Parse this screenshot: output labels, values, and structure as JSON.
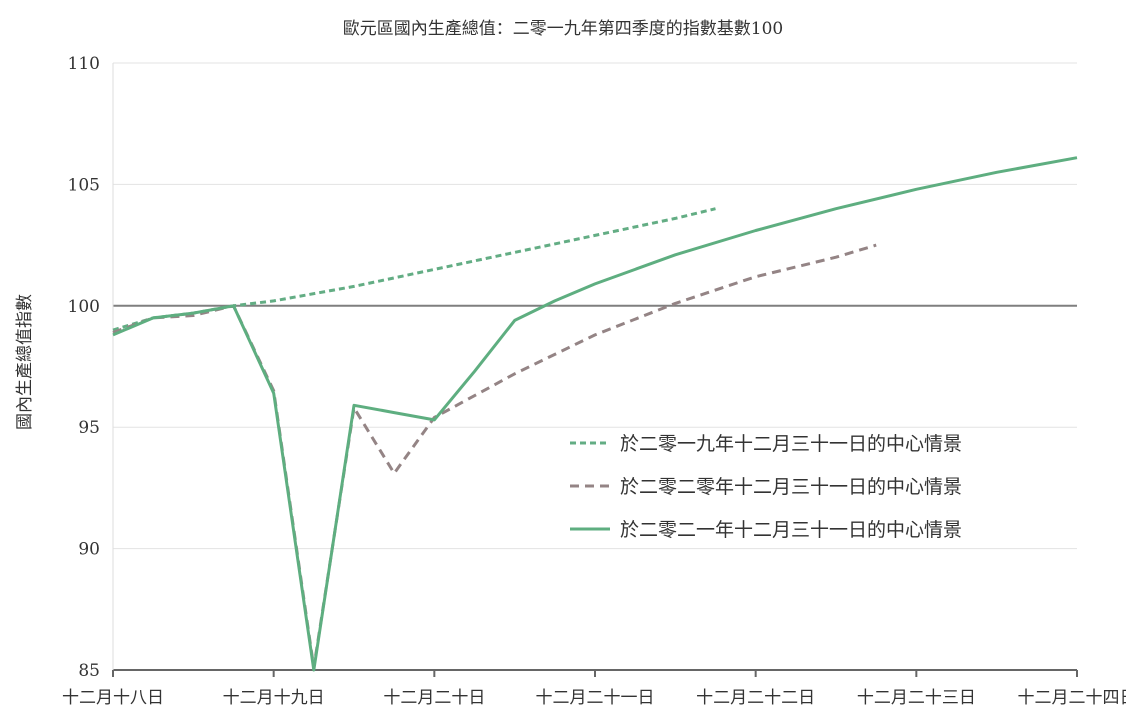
{
  "chart_data": {
    "type": "line",
    "title": "歐元區國內生產總值：二零一九年第四季度的指數基數100",
    "xlabel": "",
    "ylabel": "國內生產總值指數",
    "x_tick_labels": [
      "十二月十八日",
      "十二月十九日",
      "十二月二十日",
      "十二月二十一日",
      "十二月二十二日",
      "十二月二十三日",
      "十二月二十四日"
    ],
    "xlim": [
      2018.0,
      2024.0
    ],
    "ylim": [
      85,
      110
    ],
    "y_ticks": [
      85,
      90,
      95,
      100,
      105,
      110
    ],
    "reference_line": 100,
    "grid": "horizontal",
    "legend_position": "center-right",
    "series": [
      {
        "name": "於二零一九年十二月三十一日的中心情景",
        "style": "dotted",
        "color": "#63ad84",
        "x": [
          2018.0,
          2018.25,
          2018.5,
          2018.75,
          2019.0,
          2019.5,
          2020.0,
          2020.5,
          2021.0,
          2021.5,
          2021.75
        ],
        "y": [
          99.0,
          99.5,
          99.7,
          100.0,
          100.2,
          100.8,
          101.5,
          102.2,
          102.9,
          103.6,
          104.0
        ]
      },
      {
        "name": "於二零二零年十二月三十一日的中心情景",
        "style": "dashed",
        "color": "#948485",
        "x": [
          2018.0,
          2018.25,
          2018.5,
          2018.75,
          2019.0,
          2019.25,
          2019.5,
          2019.75,
          2020.0,
          2020.5,
          2021.0,
          2021.5,
          2022.0,
          2022.5,
          2022.75
        ],
        "y": [
          98.9,
          99.5,
          99.6,
          100.0,
          96.5,
          85.1,
          95.8,
          93.1,
          95.4,
          97.2,
          98.8,
          100.1,
          101.2,
          102.0,
          102.5
        ]
      },
      {
        "name": "於二零二一年十二月三十一日的中心情景",
        "style": "solid",
        "color": "#5eae80",
        "x": [
          2018.0,
          2018.25,
          2018.5,
          2018.75,
          2019.0,
          2019.25,
          2019.5,
          2019.75,
          2020.0,
          2020.25,
          2020.5,
          2020.75,
          2021.0,
          2021.5,
          2022.0,
          2022.5,
          2023.0,
          2023.5,
          2024.0
        ],
        "y": [
          98.8,
          99.5,
          99.7,
          100.0,
          96.4,
          85.0,
          95.9,
          95.6,
          95.3,
          97.3,
          99.4,
          100.2,
          100.9,
          102.1,
          103.1,
          104.0,
          104.8,
          105.5,
          106.1
        ]
      }
    ]
  }
}
